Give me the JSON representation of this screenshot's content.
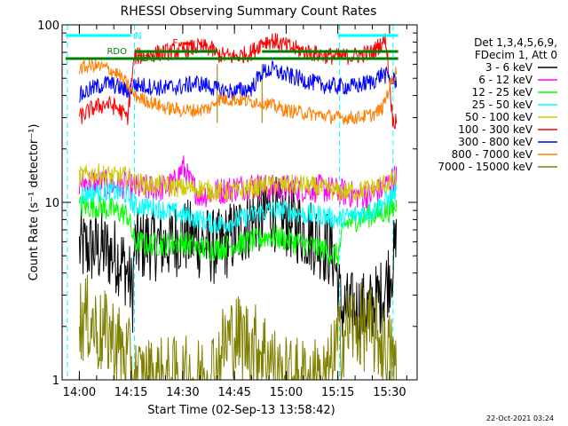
{
  "chart_data": {
    "type": "line",
    "title": "RHESSI Observing Summary Count Rates",
    "xlabel": "Start Time (02-Sep-13 13:58:42)",
    "ylabel": "Count Rate (s⁻¹ detector⁻¹)",
    "yscale": "log",
    "ylim": [
      1,
      100
    ],
    "xlim_minutes": [
      -5,
      98
    ],
    "x_ticks": [
      {
        "label": "14:00",
        "m": 0
      },
      {
        "label": "14:15",
        "m": 15
      },
      {
        "label": "14:30",
        "m": 30
      },
      {
        "label": "14:45",
        "m": 45
      },
      {
        "label": "15:00",
        "m": 60
      },
      {
        "label": "15:15",
        "m": 75
      },
      {
        "label": "15:30",
        "m": 90
      }
    ],
    "y_ticks": [
      {
        "label": "1",
        "v": 1
      },
      {
        "label": "10",
        "v": 10
      },
      {
        "label": "100",
        "v": 100
      }
    ],
    "legend_header": [
      "Det 1,3,4,5,6,9,",
      "FDecim 1, Att 0"
    ],
    "legend_placement": "right",
    "series": [
      {
        "name": "3 - 6 keV",
        "color": "#000000",
        "points": [
          [
            0,
            5.5
          ],
          [
            3,
            5.5
          ],
          [
            6,
            5.5
          ],
          [
            9,
            5.2
          ],
          [
            12,
            4.8
          ],
          [
            14,
            4.0
          ],
          [
            15.5,
            3.0
          ],
          [
            16,
            5.5
          ],
          [
            20,
            6.0
          ],
          [
            25,
            5.8
          ],
          [
            30,
            6.5
          ],
          [
            35,
            6.0
          ],
          [
            40,
            5.5
          ],
          [
            45,
            6.5
          ],
          [
            50,
            8.0
          ],
          [
            55,
            9.0
          ],
          [
            60,
            8.0
          ],
          [
            65,
            7.0
          ],
          [
            70,
            6.0
          ],
          [
            74,
            5.0
          ],
          [
            76,
            2.5
          ],
          [
            80,
            2.5
          ],
          [
            84,
            2.5
          ],
          [
            88,
            3.0
          ],
          [
            90,
            4.0
          ],
          [
            92,
            5.5
          ]
        ]
      },
      {
        "name": "6 - 12 keV",
        "color": "#ff00ff",
        "points": [
          [
            0,
            13
          ],
          [
            5,
            13
          ],
          [
            10,
            12.5
          ],
          [
            14,
            12.5
          ],
          [
            16,
            12
          ],
          [
            20,
            12
          ],
          [
            25,
            12
          ],
          [
            28,
            13
          ],
          [
            30,
            16
          ],
          [
            32,
            13
          ],
          [
            35,
            11
          ],
          [
            40,
            11.5
          ],
          [
            45,
            12
          ],
          [
            50,
            12.5
          ],
          [
            55,
            12
          ],
          [
            60,
            12
          ],
          [
            65,
            12
          ],
          [
            70,
            12
          ],
          [
            75,
            11.5
          ],
          [
            80,
            11
          ],
          [
            85,
            11
          ],
          [
            88,
            12
          ],
          [
            90,
            13
          ],
          [
            92,
            14
          ]
        ]
      },
      {
        "name": "12 - 25 keV",
        "color": "#00ff00",
        "points": [
          [
            0,
            9.5
          ],
          [
            5,
            9.5
          ],
          [
            10,
            9
          ],
          [
            14,
            8.5
          ],
          [
            16,
            6.0
          ],
          [
            20,
            5.8
          ],
          [
            25,
            5.8
          ],
          [
            30,
            6.0
          ],
          [
            35,
            5.5
          ],
          [
            40,
            5.5
          ],
          [
            45,
            5.8
          ],
          [
            50,
            6.0
          ],
          [
            55,
            6.5
          ],
          [
            60,
            6.2
          ],
          [
            65,
            5.8
          ],
          [
            70,
            5.5
          ],
          [
            75,
            5.0
          ],
          [
            77,
            7.5
          ],
          [
            80,
            8.0
          ],
          [
            85,
            8.5
          ],
          [
            90,
            9.0
          ],
          [
            92,
            9.5
          ]
        ]
      },
      {
        "name": "25 - 50 keV",
        "color": "#00ffff",
        "points": [
          [
            0,
            11
          ],
          [
            5,
            11.5
          ],
          [
            10,
            11.5
          ],
          [
            14,
            11
          ],
          [
            16,
            9.5
          ],
          [
            20,
            9.5
          ],
          [
            25,
            9.0
          ],
          [
            30,
            8.5
          ],
          [
            35,
            8.0
          ],
          [
            40,
            7.5
          ],
          [
            45,
            7.8
          ],
          [
            50,
            8.5
          ],
          [
            55,
            9.0
          ],
          [
            60,
            9.0
          ],
          [
            65,
            8.5
          ],
          [
            70,
            8.5
          ],
          [
            75,
            8.0
          ],
          [
            80,
            8.5
          ],
          [
            85,
            9.0
          ],
          [
            90,
            10.5
          ],
          [
            92,
            11.5
          ]
        ]
      },
      {
        "name": "50 - 100 keV",
        "color": "#cccc00",
        "points": [
          [
            0,
            14
          ],
          [
            5,
            14.5
          ],
          [
            10,
            14
          ],
          [
            14,
            14
          ],
          [
            16,
            13
          ],
          [
            20,
            12.5
          ],
          [
            25,
            12.5
          ],
          [
            30,
            12
          ],
          [
            35,
            12
          ],
          [
            40,
            11.5
          ],
          [
            45,
            11.5
          ],
          [
            50,
            12
          ],
          [
            55,
            12.5
          ],
          [
            60,
            12.5
          ],
          [
            65,
            12.5
          ],
          [
            70,
            12
          ],
          [
            75,
            11.5
          ],
          [
            80,
            11.5
          ],
          [
            85,
            12
          ],
          [
            90,
            13
          ],
          [
            92,
            13.5
          ]
        ]
      },
      {
        "name": "100 - 300 keV",
        "color": "#ff0000",
        "points": [
          [
            0,
            30
          ],
          [
            4,
            34
          ],
          [
            8,
            36
          ],
          [
            11,
            34
          ],
          [
            14,
            30
          ],
          [
            16,
            66
          ],
          [
            20,
            68
          ],
          [
            25,
            70
          ],
          [
            30,
            72
          ],
          [
            34,
            75
          ],
          [
            38,
            74
          ],
          [
            40,
            68
          ],
          [
            45,
            66
          ],
          [
            50,
            70
          ],
          [
            53,
            80
          ],
          [
            56,
            82
          ],
          [
            60,
            76
          ],
          [
            65,
            71
          ],
          [
            70,
            68
          ],
          [
            75,
            66
          ],
          [
            80,
            67
          ],
          [
            85,
            70
          ],
          [
            88,
            80
          ],
          [
            89,
            82
          ],
          [
            91,
            28
          ],
          [
            92,
            30
          ]
        ]
      },
      {
        "name": "300 - 800 keV",
        "color": "#0000ff",
        "points": [
          [
            0,
            40
          ],
          [
            4,
            44
          ],
          [
            8,
            47
          ],
          [
            11,
            45
          ],
          [
            14,
            42
          ],
          [
            16,
            46
          ],
          [
            20,
            45
          ],
          [
            25,
            44
          ],
          [
            30,
            45
          ],
          [
            34,
            47
          ],
          [
            38,
            45
          ],
          [
            40,
            43
          ],
          [
            45,
            42
          ],
          [
            50,
            44
          ],
          [
            53,
            54
          ],
          [
            56,
            56
          ],
          [
            60,
            52
          ],
          [
            65,
            49
          ],
          [
            70,
            46
          ],
          [
            75,
            45
          ],
          [
            80,
            45
          ],
          [
            85,
            48
          ],
          [
            88,
            53
          ],
          [
            90,
            50
          ],
          [
            92,
            48
          ]
        ]
      },
      {
        "name": "800 - 7000 keV",
        "color": "#ff8000",
        "points": [
          [
            0,
            57
          ],
          [
            4,
            59
          ],
          [
            8,
            57
          ],
          [
            11,
            53
          ],
          [
            14,
            46
          ],
          [
            16,
            40
          ],
          [
            20,
            37
          ],
          [
            25,
            34
          ],
          [
            30,
            33
          ],
          [
            34,
            33
          ],
          [
            38,
            34
          ],
          [
            40,
            38
          ],
          [
            45,
            38
          ],
          [
            50,
            37
          ],
          [
            53,
            37
          ],
          [
            56,
            35
          ],
          [
            60,
            33
          ],
          [
            65,
            32
          ],
          [
            70,
            31
          ],
          [
            75,
            30
          ],
          [
            80,
            30
          ],
          [
            85,
            31
          ],
          [
            88,
            34
          ],
          [
            90,
            45
          ],
          [
            92,
            55
          ]
        ]
      },
      {
        "name": "7000 - 15000 keV",
        "color": "#808000",
        "points": [
          [
            0,
            2.2
          ],
          [
            3,
            2.2
          ],
          [
            6,
            1.8
          ],
          [
            9,
            1.8
          ],
          [
            12,
            1.5
          ],
          [
            15,
            1.2
          ],
          [
            16,
            1.0
          ],
          [
            25,
            1.0
          ],
          [
            35,
            1.0
          ],
          [
            40,
            1.2
          ],
          [
            42,
            1.6
          ],
          [
            45,
            1.8
          ],
          [
            50,
            1.6
          ],
          [
            55,
            1.4
          ],
          [
            58,
            1.0
          ],
          [
            65,
            1.0
          ],
          [
            72,
            1.0
          ],
          [
            75,
            1.6
          ],
          [
            78,
            2.0
          ],
          [
            82,
            2.0
          ],
          [
            86,
            1.8
          ],
          [
            89,
            1.5
          ],
          [
            91,
            1.3
          ],
          [
            92,
            1.0
          ]
        ]
      }
    ],
    "annotations": [
      {
        "text": "N",
        "color": "#00ffff"
      },
      {
        "text": "F",
        "color": "#ff0000"
      },
      {
        "text": "RDO",
        "color": "#008000"
      },
      {
        "text": "RDO",
        "color": "#008000"
      }
    ]
  },
  "footer": {
    "timestamp": "22-Oct-2021 03:24"
  }
}
